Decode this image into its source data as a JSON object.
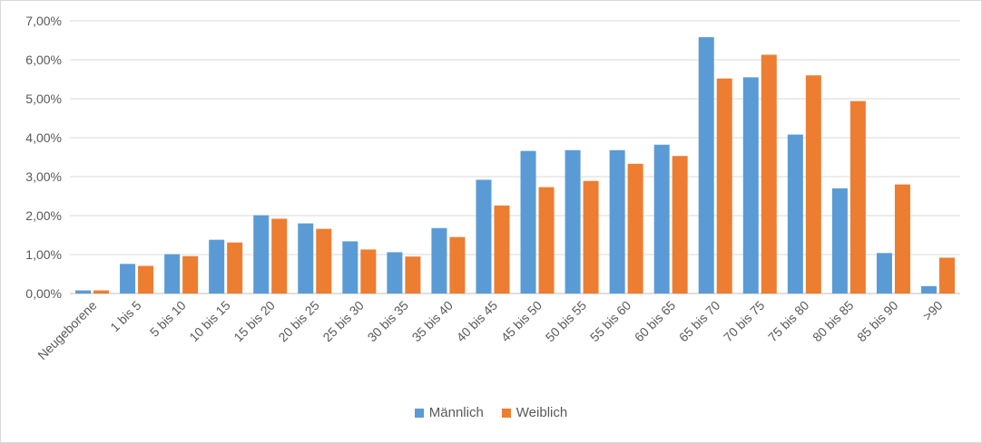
{
  "chart_data": {
    "type": "bar",
    "categories": [
      "Neugeborene",
      "1 bis 5",
      "5 bis 10",
      "10 bis 15",
      "15 bis 20",
      "20 bis 25",
      "25 bis 30",
      "30 bis 35",
      "35 bis 40",
      "40 bis 45",
      "45 bis 50",
      "50 bis 55",
      "55 bis 60",
      "60 bis 65",
      "65 bis 70",
      "70 bis 75",
      "75 bis 80",
      "80 bis 85",
      "85 bis 90",
      ">90"
    ],
    "series": [
      {
        "name": "Männlich",
        "color": "#5b9bd5",
        "values": [
          0.08,
          0.76,
          1.01,
          1.38,
          2.01,
          1.8,
          1.34,
          1.06,
          1.68,
          2.92,
          3.66,
          3.68,
          3.68,
          3.82,
          6.58,
          5.55,
          4.08,
          2.7,
          1.04,
          0.19
        ]
      },
      {
        "name": "Weiblich",
        "color": "#ed7d31",
        "values": [
          0.08,
          0.71,
          0.96,
          1.31,
          1.92,
          1.66,
          1.13,
          0.95,
          1.45,
          2.26,
          2.73,
          2.89,
          3.33,
          3.53,
          5.52,
          6.13,
          5.6,
          4.94,
          2.8,
          0.92
        ]
      }
    ],
    "yticks": [
      "0,00%",
      "1,00%",
      "2,00%",
      "3,00%",
      "4,00%",
      "5,00%",
      "6,00%",
      "7,00%"
    ],
    "ylim": [
      0,
      7
    ],
    "grid": true,
    "legend_position": "bottom"
  }
}
